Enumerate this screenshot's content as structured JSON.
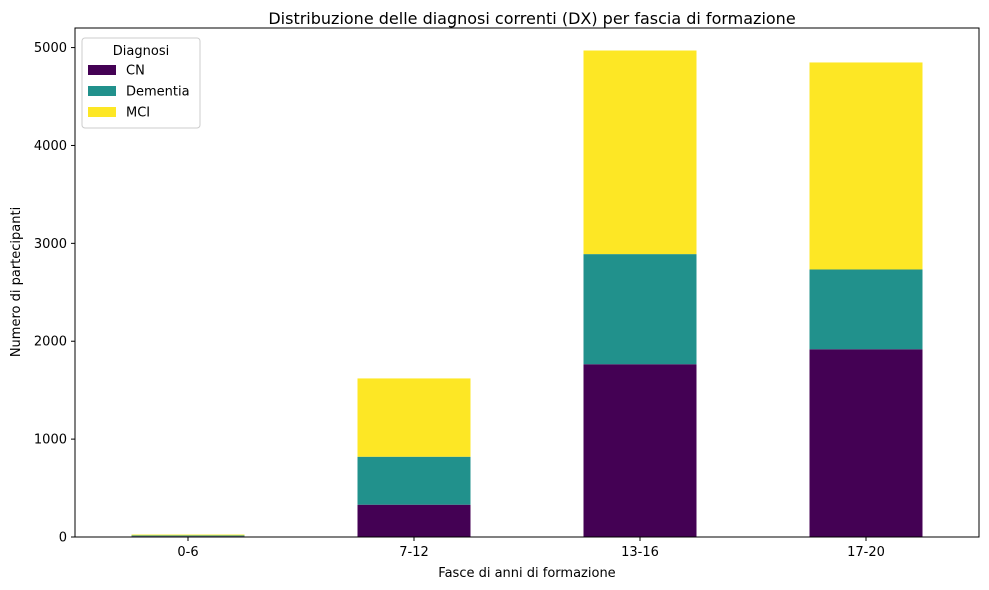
{
  "chart_data": {
    "type": "bar",
    "stacked": true,
    "title": "Distribuzione delle diagnosi correnti (DX) per fascia di formazione",
    "xlabel": "Fasce di anni di formazione",
    "ylabel": "Numero di partecipanti",
    "categories": [
      "0-6",
      "7-12",
      "13-16",
      "17-20"
    ],
    "series": [
      {
        "name": "CN",
        "color": "#440154",
        "values": [
          8,
          330,
          1765,
          1918
        ]
      },
      {
        "name": "Dementia",
        "color": "#21918c",
        "values": [
          8,
          490,
          1125,
          815
        ]
      },
      {
        "name": "MCI",
        "color": "#fde725",
        "values": [
          9,
          800,
          2080,
          2115
        ]
      }
    ],
    "ylim": [
      0,
      5200
    ],
    "yticks": [
      0,
      1000,
      2000,
      3000,
      4000,
      5000
    ],
    "legend": {
      "title": "Diagnosi",
      "position": "top-left"
    },
    "grid": false
  }
}
